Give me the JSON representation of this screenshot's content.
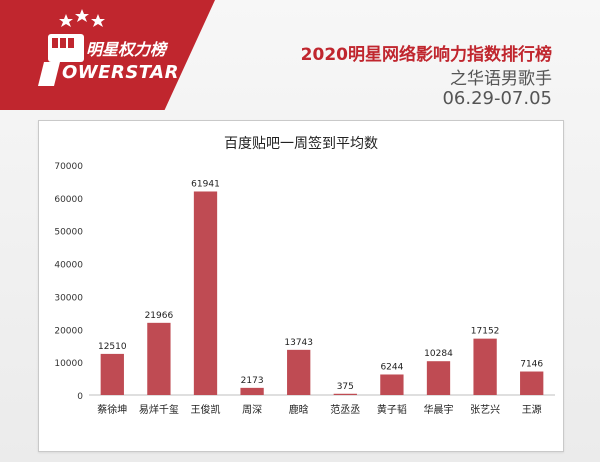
{
  "brand": {
    "logo_cn": "明星权力榜",
    "logo_en": "OWERSTAR",
    "red": "#c0262e"
  },
  "header": {
    "title": "2020明星网络影响力指数排行榜",
    "subtitle": "之华语男歌手",
    "date_range": "06.29-07.05"
  },
  "chart_data": {
    "type": "bar",
    "title": "百度贴吧一周签到平均数",
    "categories": [
      "蔡徐坤",
      "易烊千玺",
      "王俊凯",
      "周深",
      "鹿晗",
      "范丞丞",
      "黄子韬",
      "华晨宇",
      "张艺兴",
      "王源"
    ],
    "values": [
      12510,
      21966,
      61941,
      2173,
      13743,
      375,
      6244,
      10284,
      17152,
      7146
    ],
    "ylim": [
      0,
      70000
    ],
    "yticks": [
      0,
      10000,
      20000,
      30000,
      40000,
      50000,
      60000,
      70000
    ],
    "grid": false,
    "bar_color": "#bf4b53"
  }
}
